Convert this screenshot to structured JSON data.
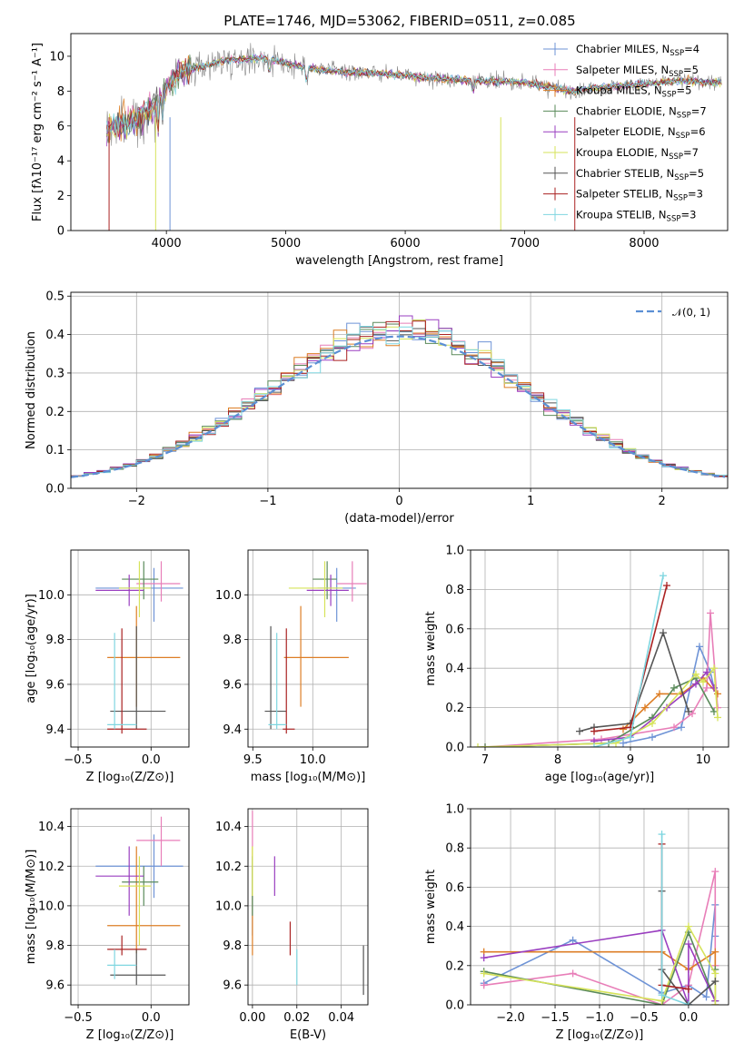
{
  "title": "PLATE=1746, MJD=53062, FIBERID=0511, z=0.085",
  "colors": {
    "chabrier_miles": "#6e93d6",
    "salpeter_miles": "#e87eb8",
    "kroupa_miles": "#dd7e25",
    "chabrier_elodie": "#5a8a5a",
    "salpeter_elodie": "#9a3fc0",
    "kroupa_elodie": "#d6e35a",
    "chabrier_stelib": "#555555",
    "salpeter_stelib": "#aa2222",
    "kroupa_stelib": "#7fd6e0",
    "grid": "#b0b0b0",
    "normal_curve": "#5b8fd4"
  },
  "chart_data": [
    {
      "id": "spectrum",
      "type": "line",
      "title": "PLATE=1746, MJD=53062, FIBERID=0511, z=0.085",
      "xlabel": "wavelength [Angstrom, rest frame]",
      "ylabel": "Flux [fλ10⁻¹⁷ erg cm⁻² s⁻¹ A⁻¹]",
      "xlim": [
        3200,
        8700
      ],
      "ylim": [
        0,
        11.3
      ],
      "xticks": [
        4000,
        5000,
        6000,
        7000,
        8000
      ],
      "yticks": [
        0,
        2,
        4,
        6,
        8,
        10
      ],
      "grid": false,
      "legend": "right",
      "series": [
        {
          "name": "Chabrier MILES, N",
          "sub": "SSP",
          "suffix": "=4",
          "color_key": "chabrier_miles"
        },
        {
          "name": "Salpeter MILES, N",
          "sub": "SSP",
          "suffix": "=5",
          "color_key": "salpeter_miles"
        },
        {
          "name": "Kroupa MILES, N",
          "sub": "SSP",
          "suffix": "=5",
          "color_key": "kroupa_miles"
        },
        {
          "name": "Chabrier ELODIE, N",
          "sub": "SSP",
          "suffix": "=7",
          "color_key": "chabrier_elodie"
        },
        {
          "name": "Salpeter ELODIE, N",
          "sub": "SSP",
          "suffix": "=6",
          "color_key": "salpeter_elodie"
        },
        {
          "name": "Kroupa ELODIE, N",
          "sub": "SSP",
          "suffix": "=7",
          "color_key": "kroupa_elodie"
        },
        {
          "name": "Chabrier STELIB, N",
          "sub": "SSP",
          "suffix": "=5",
          "color_key": "chabrier_stelib"
        },
        {
          "name": "Salpeter STELIB, N",
          "sub": "SSP",
          "suffix": "=3",
          "color_key": "salpeter_stelib"
        },
        {
          "name": "Kroupa STELIB, N",
          "sub": "SSP",
          "suffix": "=3",
          "color_key": "kroupa_stelib"
        }
      ],
      "continuum": [
        [
          3500,
          5.8
        ],
        [
          3700,
          6.3
        ],
        [
          3900,
          7.0
        ],
        [
          4000,
          8.2
        ],
        [
          4100,
          9.1
        ],
        [
          4300,
          9.4
        ],
        [
          4500,
          9.8
        ],
        [
          4800,
          9.9
        ],
        [
          5000,
          9.6
        ],
        [
          5200,
          9.3
        ],
        [
          5500,
          9.1
        ],
        [
          5800,
          9.0
        ],
        [
          6000,
          8.9
        ],
        [
          6300,
          8.7
        ],
        [
          6600,
          8.6
        ],
        [
          7000,
          8.5
        ],
        [
          7400,
          8.0
        ],
        [
          7600,
          8.2
        ],
        [
          7800,
          8.3
        ],
        [
          8000,
          8.4
        ],
        [
          8300,
          8.6
        ],
        [
          8600,
          8.5
        ]
      ]
    },
    {
      "id": "residuals",
      "type": "line",
      "xlabel": "(data-model)/error",
      "ylabel": "Normed distribution",
      "xlim": [
        -2.5,
        2.5
      ],
      "ylim": [
        0,
        0.51
      ],
      "xticks": [
        -2,
        -1,
        0,
        1,
        2
      ],
      "yticks": [
        0.0,
        0.1,
        0.2,
        0.3,
        0.4,
        0.5
      ],
      "grid": true,
      "legend": "top-right",
      "legend_label": "𝒩(0, 1)",
      "bin_width": 0.1,
      "bin_start": -2.5
    },
    {
      "id": "age_vs_z",
      "type": "scatter",
      "xlabel": "Z [log₁₀(Z/Z⊙)]",
      "ylabel": "age  [log₁₀(age/yr)]",
      "xlim": [
        -0.55,
        0.26
      ],
      "ylim": [
        9.32,
        10.2
      ],
      "xticks": [
        -0.5,
        0.0
      ],
      "yticks": [
        9.4,
        9.6,
        9.8,
        10.0
      ],
      "grid": true
    },
    {
      "id": "age_vs_mass",
      "type": "scatter",
      "xlabel": "mass [log₁₀(M/M⊙)]",
      "xlim": [
        9.46,
        10.46
      ],
      "ylim": [
        9.32,
        10.2
      ],
      "xticks": [
        9.5,
        10.0
      ],
      "yticks": [
        9.4,
        9.6,
        9.8,
        10.0
      ],
      "grid": true
    },
    {
      "id": "massweight_vs_age",
      "type": "line",
      "xlabel": "age  [log₁₀(age/yr)]",
      "ylabel": "mass weight",
      "xlim": [
        6.8,
        10.35
      ],
      "ylim": [
        0,
        1.0
      ],
      "xticks": [
        7,
        8,
        9,
        10
      ],
      "yticks": [
        0.0,
        0.2,
        0.4,
        0.6,
        0.8,
        1.0
      ],
      "grid": true
    },
    {
      "id": "mass_vs_z",
      "type": "scatter",
      "xlabel": "Z [log₁₀(Z/Z⊙)]",
      "ylabel": "mass [log₁₀(M/M⊙)]",
      "xlim": [
        -0.55,
        0.26
      ],
      "ylim": [
        9.5,
        10.49
      ],
      "xticks": [
        -0.5,
        0.0
      ],
      "yticks": [
        9.6,
        9.8,
        10.0,
        10.2,
        10.4
      ],
      "grid": true
    },
    {
      "id": "mass_vs_ebv",
      "type": "scatter",
      "xlabel": "E(B-V)",
      "xlim": [
        -0.002,
        0.052
      ],
      "ylim": [
        9.5,
        10.49
      ],
      "xticks": [
        0.0,
        0.02,
        0.04
      ],
      "yticks": [
        9.6,
        9.8,
        10.0,
        10.2,
        10.4
      ],
      "grid": true
    },
    {
      "id": "massweight_vs_z",
      "type": "line",
      "xlabel": "Z [log₁₀(Z/Z⊙)]",
      "ylabel": "mass weight",
      "xlim": [
        -2.45,
        0.45
      ],
      "ylim": [
        0,
        1.0
      ],
      "xticks": [
        -2.0,
        -1.5,
        -1.0,
        -0.5,
        0.0
      ],
      "yticks": [
        0.0,
        0.2,
        0.4,
        0.6,
        0.8,
        1.0
      ],
      "grid": true
    }
  ],
  "fits": [
    {
      "key": "chabrier_miles",
      "z": 0.02,
      "zlo": -0.38,
      "zhi": 0.22,
      "age": 10.03,
      "alo": 9.88,
      "ahi": 10.12,
      "mass": 10.2,
      "mlo": 10.04,
      "mhi": 10.36,
      "ebv": 0.0,
      "elo": 9.85,
      "ehi": 10.2,
      "wa": [
        [
          8.9,
          0.02
        ],
        [
          9.3,
          0.05
        ],
        [
          9.7,
          0.1
        ],
        [
          9.95,
          0.51
        ],
        [
          10.1,
          0.38
        ],
        [
          10.15,
          0.3
        ]
      ],
      "wz": [
        [
          -2.3,
          0.11
        ],
        [
          -1.3,
          0.33
        ],
        [
          -0.3,
          0.06
        ],
        [
          0.0,
          0.1
        ],
        [
          0.2,
          0.04
        ],
        [
          0.3,
          0.51
        ],
        [
          0.3,
          0.35
        ]
      ]
    },
    {
      "key": "salpeter_miles",
      "z": 0.07,
      "zlo": -0.1,
      "zhi": 0.2,
      "age": 10.05,
      "alo": 9.97,
      "ahi": 10.15,
      "mass": 10.33,
      "mlo": 10.2,
      "mhi": 10.45,
      "ebv": 0.0,
      "elo": 10.3,
      "ehi": 10.48,
      "wa": [
        [
          7.0,
          0.0
        ],
        [
          8.6,
          0.04
        ],
        [
          9.6,
          0.1
        ],
        [
          9.85,
          0.17
        ],
        [
          10.05,
          0.3
        ],
        [
          10.1,
          0.68
        ],
        [
          10.2,
          0.2
        ]
      ],
      "wz": [
        [
          -2.3,
          0.1
        ],
        [
          -1.3,
          0.16
        ],
        [
          -0.3,
          0.0
        ],
        [
          0.0,
          0.1
        ],
        [
          0.3,
          0.68
        ],
        [
          0.3,
          0.2
        ]
      ]
    },
    {
      "key": "kroupa_miles",
      "z": -0.1,
      "zlo": -0.3,
      "zhi": 0.2,
      "age": 9.72,
      "alo": 9.5,
      "ahi": 9.95,
      "mass": 9.9,
      "mlo": 9.76,
      "mhi": 10.3,
      "ebv": 0.0,
      "elo": 9.75,
      "ehi": 10.3,
      "wa": [
        [
          8.9,
          0.09
        ],
        [
          9.2,
          0.2
        ],
        [
          9.4,
          0.27
        ],
        [
          9.7,
          0.27
        ],
        [
          10.0,
          0.35
        ],
        [
          10.2,
          0.27
        ]
      ],
      "wz": [
        [
          -2.3,
          0.27
        ],
        [
          -0.3,
          0.27
        ],
        [
          0.0,
          0.18
        ],
        [
          0.3,
          0.27
        ],
        [
          0.3,
          0.0
        ]
      ]
    },
    {
      "key": "chabrier_elodie",
      "z": -0.05,
      "zlo": -0.2,
      "zhi": 0.05,
      "age": 10.07,
      "alo": 9.98,
      "ahi": 10.15,
      "mass": 10.12,
      "mlo": 10.0,
      "mhi": 10.2,
      "ebv": 0.0,
      "elo": 9.95,
      "ehi": 10.25,
      "wa": [
        [
          7.0,
          0.0
        ],
        [
          8.7,
          0.02
        ],
        [
          9.3,
          0.15
        ],
        [
          9.6,
          0.3
        ],
        [
          9.9,
          0.35
        ],
        [
          10.15,
          0.18
        ]
      ],
      "wz": [
        [
          -2.3,
          0.17
        ],
        [
          -0.3,
          0.0
        ],
        [
          0.0,
          0.37
        ],
        [
          0.3,
          0.02
        ],
        [
          0.3,
          0.18
        ]
      ]
    },
    {
      "key": "salpeter_elodie",
      "z": -0.15,
      "zlo": -0.38,
      "zhi": -0.05,
      "age": 10.02,
      "alo": 9.95,
      "ahi": 10.09,
      "mass": 10.15,
      "mlo": 9.95,
      "mhi": 10.3,
      "ebv": 0.01,
      "elo": 10.05,
      "ehi": 10.25,
      "wa": [
        [
          8.5,
          0.03
        ],
        [
          9.0,
          0.05
        ],
        [
          9.5,
          0.2
        ],
        [
          9.9,
          0.32
        ],
        [
          10.05,
          0.38
        ],
        [
          10.15,
          0.3
        ]
      ],
      "wz": [
        [
          -2.3,
          0.24
        ],
        [
          -0.3,
          0.38
        ],
        [
          0.0,
          0.0
        ],
        [
          0.0,
          0.31
        ],
        [
          0.3,
          0.02
        ]
      ]
    },
    {
      "key": "kroupa_elodie",
      "z": -0.08,
      "zlo": -0.22,
      "zhi": 0.0,
      "age": 10.03,
      "alo": 9.9,
      "ahi": 10.15,
      "mass": 10.1,
      "mlo": 9.8,
      "mhi": 10.25,
      "ebv": 0.0,
      "elo": 10.05,
      "ehi": 10.3,
      "wa": [
        [
          6.9,
          0.0
        ],
        [
          8.8,
          0.02
        ],
        [
          9.3,
          0.12
        ],
        [
          9.9,
          0.37
        ],
        [
          10.0,
          0.33
        ],
        [
          10.15,
          0.4
        ],
        [
          10.2,
          0.15
        ]
      ],
      "wz": [
        [
          -2.3,
          0.16
        ],
        [
          -0.3,
          0.02
        ],
        [
          0.0,
          0.4
        ],
        [
          0.3,
          0.16
        ],
        [
          0.3,
          0.0
        ]
      ]
    },
    {
      "key": "chabrier_stelib",
      "z": -0.1,
      "zlo": -0.28,
      "zhi": 0.1,
      "age": 9.48,
      "alo": 9.4,
      "ahi": 9.86,
      "mass": 9.65,
      "mlo": 9.6,
      "mhi": 9.78,
      "ebv": 0.05,
      "elo": 9.55,
      "ehi": 9.8,
      "wa": [
        [
          8.3,
          0.08
        ],
        [
          8.5,
          0.1
        ],
        [
          9.0,
          0.12
        ],
        [
          9.45,
          0.58
        ],
        [
          9.8,
          0.18
        ]
      ],
      "wz": [
        [
          -0.3,
          0.58
        ],
        [
          -0.3,
          0.18
        ],
        [
          0.0,
          0.0
        ],
        [
          0.3,
          0.12
        ]
      ]
    },
    {
      "key": "salpeter_stelib",
      "z": -0.2,
      "zlo": -0.3,
      "zhi": -0.03,
      "age": 9.4,
      "alo": 9.38,
      "ahi": 9.85,
      "mass": 9.78,
      "mlo": 9.75,
      "mhi": 9.85,
      "ebv": 0.017,
      "elo": 9.75,
      "ehi": 9.92,
      "wa": [
        [
          8.5,
          0.08
        ],
        [
          9.0,
          0.1
        ],
        [
          9.5,
          0.82
        ]
      ],
      "wz": [
        [
          -0.3,
          0.82
        ],
        [
          -0.3,
          0.1
        ],
        [
          0.0,
          0.08
        ]
      ]
    },
    {
      "key": "kroupa_stelib",
      "z": -0.25,
      "zlo": -0.3,
      "zhi": -0.1,
      "age": 9.42,
      "alo": 9.4,
      "ahi": 9.83,
      "mass": 9.7,
      "mlo": 9.63,
      "mhi": 9.78,
      "ebv": 0.02,
      "elo": 9.6,
      "ehi": 9.78,
      "wa": [
        [
          8.5,
          0.0
        ],
        [
          9.0,
          0.05
        ],
        [
          9.45,
          0.87
        ]
      ],
      "wz": [
        [
          -0.3,
          0.87
        ],
        [
          -0.3,
          0.05
        ],
        [
          0.0,
          0.0
        ]
      ]
    }
  ]
}
